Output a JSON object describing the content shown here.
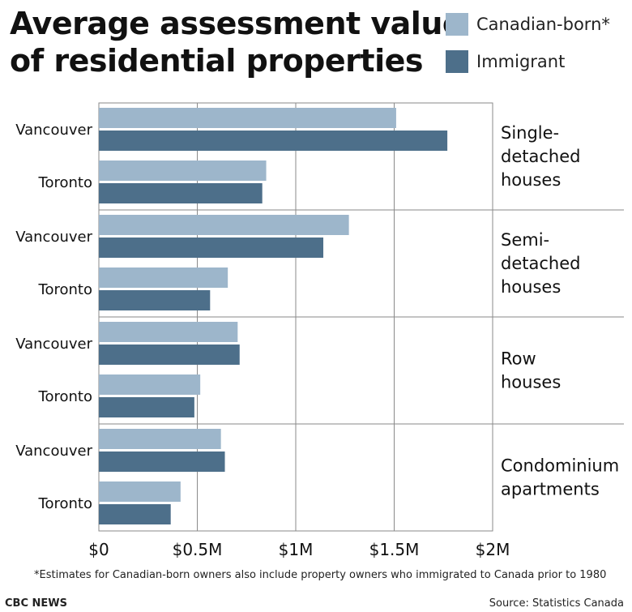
{
  "header": {
    "title_line1": "Average assessment value",
    "title_line2": "of residential properties"
  },
  "legend": [
    {
      "name": "Canadian-born*",
      "color": "#9db6cb"
    },
    {
      "name": "Immigrant",
      "color": "#4d6f8a"
    }
  ],
  "chart_data": {
    "type": "bar",
    "orientation": "horizontal",
    "title": "Average assessment value of residential properties",
    "x_ticks": [
      "$0",
      "$0.5M",
      "$1M",
      "$1.5M",
      "$2M"
    ],
    "x_tick_values": [
      0,
      0.5,
      1.0,
      1.5,
      2.0
    ],
    "xlim": [
      0,
      2.0
    ],
    "x_unit": "$M",
    "grid": true,
    "legend_position": "top-right",
    "groups": [
      {
        "label_lines": [
          "Single-",
          "detached",
          "houses"
        ],
        "cities": [
          {
            "city": "Vancouver",
            "canadian_born": 1.51,
            "immigrant": 1.77
          },
          {
            "city": "Toronto",
            "canadian_born": 0.85,
            "immigrant": 0.83
          }
        ]
      },
      {
        "label_lines": [
          "Semi-",
          "detached",
          "houses"
        ],
        "cities": [
          {
            "city": "Vancouver",
            "canadian_born": 1.27,
            "immigrant": 1.14
          },
          {
            "city": "Toronto",
            "canadian_born": 0.655,
            "immigrant": 0.565
          }
        ]
      },
      {
        "label_lines": [
          "Row",
          "houses"
        ],
        "cities": [
          {
            "city": "Vancouver",
            "canadian_born": 0.705,
            "immigrant": 0.715
          },
          {
            "city": "Toronto",
            "canadian_born": 0.515,
            "immigrant": 0.485
          }
        ]
      },
      {
        "label_lines": [
          "Condominium",
          "apartments"
        ],
        "cities": [
          {
            "city": "Vancouver",
            "canadian_born": 0.62,
            "immigrant": 0.64
          },
          {
            "city": "Toronto",
            "canadian_born": 0.415,
            "immigrant": 0.365
          }
        ]
      }
    ]
  },
  "footer": {
    "footnote": "*Estimates for Canadian-born owners also include property owners who immigrated to Canada prior to 1980",
    "credit": "CBC NEWS",
    "source": "Source: Statistics Canada"
  }
}
